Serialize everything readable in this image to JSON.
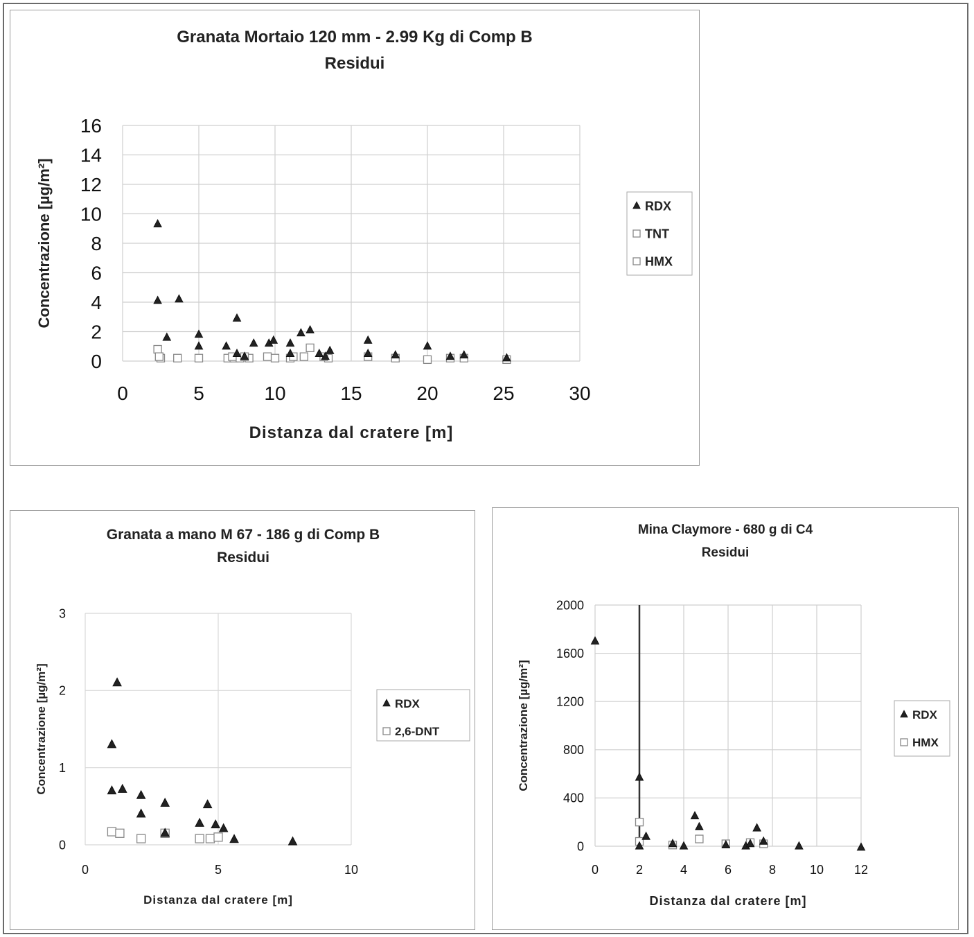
{
  "chart_data": [
    {
      "type": "scatter",
      "title": "Granata Mortaio 120 mm - 2.99 Kg di Comp B",
      "subtitle": "Residui",
      "xlabel": "Distanza dal cratere [m]",
      "ylabel": "Concentrazione [µg/m²]",
      "xlim": [
        0,
        30
      ],
      "ylim": [
        0,
        16
      ],
      "xticks": [
        0,
        5,
        10,
        15,
        20,
        25,
        30
      ],
      "yticks": [
        0,
        2,
        4,
        6,
        8,
        10,
        12,
        14,
        16
      ],
      "grid": true,
      "legend_position": "right",
      "series": [
        {
          "name": "RDX",
          "marker": "triangle-filled",
          "points": [
            [
              2.3,
              9.3
            ],
            [
              2.3,
              4.1
            ],
            [
              3.7,
              4.2
            ],
            [
              2.9,
              1.6
            ],
            [
              5.0,
              1.8
            ],
            [
              5.0,
              1.0
            ],
            [
              6.8,
              1.0
            ],
            [
              7.5,
              2.9
            ],
            [
              7.5,
              0.5
            ],
            [
              8.0,
              0.3
            ],
            [
              8.6,
              1.2
            ],
            [
              9.6,
              1.2
            ],
            [
              9.9,
              1.4
            ],
            [
              11.0,
              1.2
            ],
            [
              11.0,
              0.5
            ],
            [
              11.7,
              1.9
            ],
            [
              12.3,
              2.1
            ],
            [
              12.9,
              0.5
            ],
            [
              13.3,
              0.3
            ],
            [
              13.6,
              0.7
            ],
            [
              16.1,
              1.4
            ],
            [
              16.1,
              0.5
            ],
            [
              17.9,
              0.4
            ],
            [
              20.0,
              1.0
            ],
            [
              21.5,
              0.3
            ],
            [
              22.4,
              0.4
            ],
            [
              25.2,
              0.2
            ]
          ]
        },
        {
          "name": "TNT",
          "marker": "square-open",
          "points": [
            [
              2.3,
              0.8
            ],
            [
              2.5,
              0.2
            ],
            [
              3.6,
              0.2
            ],
            [
              5.0,
              0.2
            ],
            [
              6.9,
              0.2
            ],
            [
              7.3,
              0.2
            ],
            [
              7.7,
              0.2
            ],
            [
              8.3,
              0.2
            ],
            [
              10.0,
              0.2
            ],
            [
              11.0,
              0.2
            ],
            [
              12.3,
              0.9
            ],
            [
              13.5,
              0.2
            ],
            [
              16.1,
              0.3
            ],
            [
              17.9,
              0.2
            ],
            [
              20.0,
              0.1
            ]
          ]
        },
        {
          "name": "HMX",
          "marker": "square-open",
          "points": [
            [
              2.4,
              0.3
            ],
            [
              7.2,
              0.3
            ],
            [
              8.0,
              0.3
            ],
            [
              9.5,
              0.3
            ],
            [
              11.2,
              0.3
            ],
            [
              11.9,
              0.3
            ],
            [
              13.2,
              0.3
            ],
            [
              21.5,
              0.2
            ],
            [
              22.4,
              0.2
            ],
            [
              25.2,
              0.1
            ]
          ]
        }
      ]
    },
    {
      "type": "scatter",
      "title": "Granata a mano M 67 - 186 g di Comp B",
      "subtitle": "Residui",
      "xlabel": "Distanza dal cratere [m]",
      "ylabel": "Concentrazione [µg/m²]",
      "xlim": [
        0,
        10
      ],
      "ylim": [
        0,
        3
      ],
      "xticks": [
        0,
        5,
        10
      ],
      "yticks": [
        0,
        1,
        2,
        3
      ],
      "grid": true,
      "legend_position": "right",
      "series": [
        {
          "name": "RDX",
          "marker": "triangle-filled",
          "points": [
            [
              1.2,
              2.1
            ],
            [
              1.0,
              1.3
            ],
            [
              1.0,
              0.7
            ],
            [
              1.4,
              0.72
            ],
            [
              2.1,
              0.64
            ],
            [
              2.1,
              0.4
            ],
            [
              3.0,
              0.54
            ],
            [
              3.0,
              0.15
            ],
            [
              4.3,
              0.28
            ],
            [
              4.6,
              0.52
            ],
            [
              4.9,
              0.26
            ],
            [
              5.2,
              0.21
            ],
            [
              5.6,
              0.07
            ],
            [
              7.8,
              0.04
            ]
          ]
        },
        {
          "name": "2,6-DNT",
          "marker": "square-open",
          "points": [
            [
              1.0,
              0.17
            ],
            [
              1.3,
              0.15
            ],
            [
              2.1,
              0.08
            ],
            [
              3.0,
              0.15
            ],
            [
              4.3,
              0.08
            ],
            [
              4.7,
              0.08
            ],
            [
              5.0,
              0.1
            ]
          ]
        }
      ]
    },
    {
      "type": "scatter",
      "title": "Mina Claymore - 680 g di C4",
      "subtitle": "Residui",
      "xlabel": "Distanza dal cratere [m]",
      "ylabel": "Concentrazione [µg/m²]",
      "xlim": [
        0,
        12
      ],
      "ylim": [
        0,
        2000
      ],
      "xticks": [
        0,
        2,
        4,
        6,
        8,
        10,
        12
      ],
      "xtick_labels": [
        "0",
        "2",
        "4",
        "6",
        "8",
        "10",
        "12"
      ],
      "yticks": [
        0,
        400,
        800,
        1200,
        1600,
        2000
      ],
      "ytick_labels": [
        "0",
        "400",
        "800",
        "1200",
        "1600",
        "2000"
      ],
      "grid": true,
      "legend_position": "right",
      "series": [
        {
          "name": "RDX",
          "marker": "triangle-filled",
          "points": [
            [
              0.0,
              1700
            ],
            [
              2.0,
              570
            ],
            [
              2.0,
              0
            ],
            [
              2.3,
              80
            ],
            [
              3.5,
              20
            ],
            [
              4.0,
              0
            ],
            [
              4.5,
              250
            ],
            [
              4.7,
              160
            ],
            [
              5.9,
              10
            ],
            [
              6.8,
              0
            ],
            [
              7.0,
              20
            ],
            [
              7.3,
              150
            ],
            [
              7.6,
              40
            ],
            [
              9.2,
              0
            ],
            [
              12.0,
              -10
            ]
          ]
        },
        {
          "name": "HMX",
          "marker": "square-open",
          "points": [
            [
              2.0,
              200
            ],
            [
              2.0,
              40
            ],
            [
              3.5,
              10
            ],
            [
              4.7,
              60
            ],
            [
              5.9,
              20
            ],
            [
              7.0,
              30
            ],
            [
              7.6,
              20
            ]
          ]
        }
      ]
    }
  ]
}
